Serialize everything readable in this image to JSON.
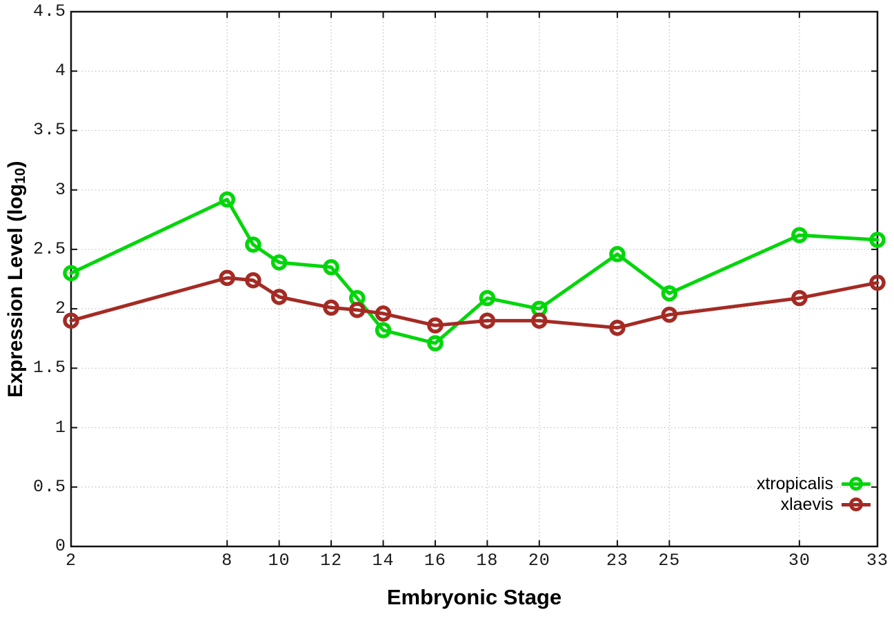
{
  "figure": {
    "background": "#ffffff",
    "border_color": "#111111",
    "grid_color": "#bdbdbd",
    "tick_color": "#111111",
    "tick_label_color": "#1a1a1a"
  },
  "chart_data": {
    "type": "line",
    "title": "",
    "xlabel": "Embryonic Stage",
    "ylabel": "Expression Level (log10)",
    "ylabel_parts": {
      "pre": "Expression Level (log",
      "sub": "10",
      "post": ")"
    },
    "x": [
      2,
      8,
      9,
      10,
      12,
      13,
      14,
      16,
      18,
      20,
      23,
      25,
      30,
      33
    ],
    "series": [
      {
        "name": "xtropicalis",
        "color": "#00D60A",
        "marker": "open-circle",
        "values": [
          2.3,
          2.92,
          2.54,
          2.39,
          2.35,
          2.09,
          1.82,
          1.71,
          2.09,
          2.0,
          2.46,
          2.13,
          2.62,
          2.58
        ]
      },
      {
        "name": "xlaevis",
        "color": "#A42B24",
        "marker": "open-circle",
        "values": [
          1.9,
          2.26,
          2.24,
          2.1,
          2.01,
          1.99,
          1.96,
          1.86,
          1.9,
          1.9,
          1.84,
          1.95,
          2.09,
          2.22
        ]
      }
    ],
    "xlim": [
      2,
      33
    ],
    "ylim": [
      0,
      4.5
    ],
    "xticks": {
      "values": [
        2,
        8,
        10,
        12,
        14,
        16,
        18,
        20,
        23,
        25,
        30,
        33
      ],
      "labels": [
        "2",
        "8",
        "10",
        "12",
        "14",
        "16",
        "18",
        "20",
        "23",
        "25",
        "30",
        "33"
      ]
    },
    "yticks": {
      "values": [
        0,
        0.5,
        1,
        1.5,
        2,
        2.5,
        3,
        3.5,
        4,
        4.5
      ],
      "labels": [
        "0",
        "0.5",
        "1",
        "1.5",
        "2",
        "2.5",
        "3",
        "3.5",
        "4",
        "4.5"
      ]
    },
    "grid": true,
    "grid_style": "dotted",
    "legend_position": "bottom-right"
  }
}
